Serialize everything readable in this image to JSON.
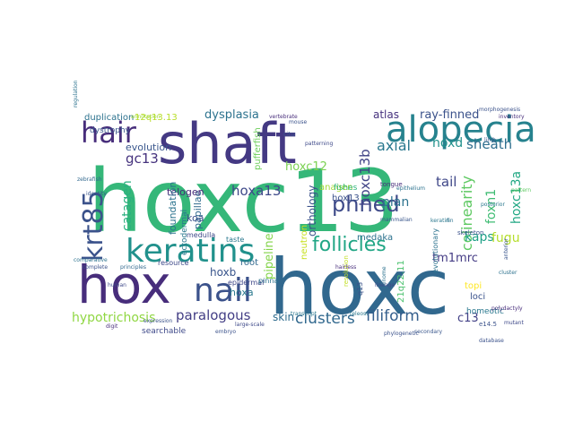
{
  "colors": {
    "background": "#ffffff",
    "palette": [
      "#440154",
      "#472d7b",
      "#3b528b",
      "#2c728e",
      "#21918c",
      "#28ae80",
      "#5ec962",
      "#addc30",
      "#fde725"
    ]
  },
  "words": [
    {
      "text": "hoxc13",
      "color": "#35b779"
    },
    {
      "text": "hoxc",
      "color": "#31688e"
    },
    {
      "text": "shaft",
      "color": "#443983"
    },
    {
      "text": "hox",
      "color": "#472d7b"
    },
    {
      "text": "alopecia",
      "color": "#26828e"
    },
    {
      "text": "keratins",
      "color": "#21918c"
    },
    {
      "text": "nail",
      "color": "#3b528b"
    },
    {
      "text": "krt85",
      "color": "#3b528b"
    },
    {
      "text": "hair",
      "color": "#472d7b"
    },
    {
      "text": "phned",
      "color": "#3e4a89"
    },
    {
      "text": "follicles",
      "color": "#21a685"
    },
    {
      "text": "paralogous",
      "color": "#433e85"
    },
    {
      "text": "clusters",
      "color": "#31688e"
    },
    {
      "text": "filiform",
      "color": "#355f8d"
    },
    {
      "text": "hypotrichosis",
      "color": "#90d743"
    },
    {
      "text": "colinearity",
      "color": "#5ec962"
    },
    {
      "text": "hoxa13",
      "color": "#3e4989"
    },
    {
      "text": "catagen",
      "color": "#2ab07f"
    },
    {
      "text": "gc13",
      "color": "#46337e"
    },
    {
      "text": "dysplasia",
      "color": "#2c728e"
    },
    {
      "text": "atlas",
      "color": "#46327e"
    },
    {
      "text": "ray-finned",
      "color": "#3b528b"
    },
    {
      "text": "sheath",
      "color": "#2e6e8e"
    },
    {
      "text": "hoxd",
      "color": "#21918c"
    },
    {
      "text": "axial",
      "color": "#2a788e"
    },
    {
      "text": "hoxc12",
      "color": "#7ad151"
    },
    {
      "text": "hoxc13b",
      "color": "#414487"
    },
    {
      "text": "hoxc13a",
      "color": "#22a884"
    },
    {
      "text": "tail",
      "color": "#3f4788"
    },
    {
      "text": "plan",
      "color": "#2c728e"
    },
    {
      "text": "kaps",
      "color": "#1fa187"
    },
    {
      "text": "foxn1",
      "color": "#3fbc73"
    },
    {
      "text": "fugu",
      "color": "#b5de2b"
    },
    {
      "text": "tm1mrc",
      "color": "#443b84"
    },
    {
      "text": "c13",
      "color": "#424086"
    },
    {
      "text": "skin",
      "color": "#2f6c8e"
    },
    {
      "text": "hoxb",
      "color": "#39558c"
    },
    {
      "text": "hoxa",
      "color": "#2a788e"
    },
    {
      "text": "root",
      "color": "#31688e"
    },
    {
      "text": "pipeline",
      "color": "#84d44b"
    },
    {
      "text": "orthology",
      "color": "#3b528b"
    },
    {
      "text": "papillae",
      "color": "#306a8e"
    },
    {
      "text": "telogen",
      "color": "#472c7a"
    },
    {
      "text": "evolution",
      "color": "#39568c"
    },
    {
      "text": "foundation",
      "color": "#2c738e"
    },
    {
      "text": "koa",
      "color": "#3c508b"
    },
    {
      "text": "pufferfish",
      "color": "#6ccd5a"
    },
    {
      "text": "anagen",
      "color": "#a5db36"
    },
    {
      "text": "hox13",
      "color": "#3b528b"
    },
    {
      "text": "12q13.13",
      "color": "#b8de29"
    },
    {
      "text": "duplication",
      "color": "#2c728e"
    },
    {
      "text": "dystrophy",
      "color": "#39568c"
    },
    {
      "text": "ectodermal",
      "color": "#2a788e"
    },
    {
      "text": "medulla",
      "color": "#3e4989"
    },
    {
      "text": "neutron",
      "color": "#c8e020"
    },
    {
      "text": "medaka",
      "color": "#2c728e"
    },
    {
      "text": "fishes",
      "color": "#2fb47c"
    },
    {
      "text": "resource",
      "color": "#3e4989"
    },
    {
      "text": "epidermal",
      "color": "#3f4788"
    },
    {
      "text": "taste",
      "color": "#2a788e"
    },
    {
      "text": "pinna",
      "color": "#2c738e"
    },
    {
      "text": "21q22.11",
      "color": "#4ac16d"
    },
    {
      "text": "topi",
      "color": "#fde725"
    },
    {
      "text": "loci",
      "color": "#3b528b"
    },
    {
      "text": "homeotic",
      "color": "#2a788e"
    },
    {
      "text": "e14.5",
      "color": "#3b528b"
    },
    {
      "text": "evolutionary",
      "color": "#2c728e"
    },
    {
      "text": "skeleton",
      "color": "#3b528b"
    },
    {
      "text": "tongue",
      "color": "#472d7b"
    },
    {
      "text": "q13",
      "color": "#3b528b"
    },
    {
      "text": "searchable",
      "color": "#3e4989"
    },
    {
      "text": "citu",
      "color": "#39568c"
    },
    {
      "text": "resolution",
      "color": "#c2df23"
    },
    {
      "text": "database",
      "color": "#3b528b"
    },
    {
      "text": "genome",
      "color": "#2c728e"
    },
    {
      "text": "mammalian",
      "color": "#39568c"
    },
    {
      "text": "inventory",
      "color": "#472d7b"
    },
    {
      "text": "morphogenesis",
      "color": "#3b528b"
    },
    {
      "text": "keratin",
      "color": "#2a788e"
    },
    {
      "text": "patterning",
      "color": "#3e4989"
    },
    {
      "text": "posterior",
      "color": "#2a788e"
    },
    {
      "text": "anterior",
      "color": "#39568c"
    },
    {
      "text": "vertebrate",
      "color": "#472d7b"
    },
    {
      "text": "epithelium",
      "color": "#2c728e"
    },
    {
      "text": "phylogenetic",
      "color": "#3b528b"
    },
    {
      "text": "secondary",
      "color": "#39568c"
    },
    {
      "text": "large-scale",
      "color": "#3e4989"
    },
    {
      "text": "principles",
      "color": "#31688e"
    },
    {
      "text": "comparative",
      "color": "#2c728e"
    },
    {
      "text": "annotation",
      "color": "#a0da39"
    },
    {
      "text": "polydactyly",
      "color": "#472d7b"
    },
    {
      "text": "complete",
      "color": "#3b528b"
    },
    {
      "text": "regulation",
      "color": "#2c728e"
    },
    {
      "text": "identity",
      "color": "#39568c"
    },
    {
      "text": "mutant",
      "color": "#3e4989"
    },
    {
      "text": "hairless",
      "color": "#472d7b"
    },
    {
      "text": "transcript",
      "color": "#2a788e"
    },
    {
      "text": "expression",
      "color": "#3b528b"
    },
    {
      "text": "zebrafish",
      "color": "#31688e"
    },
    {
      "text": "lineage",
      "color": "#3e4989"
    },
    {
      "text": "cluster",
      "color": "#2c728e"
    },
    {
      "text": "pattern",
      "color": "#5ec962"
    },
    {
      "text": "mouse",
      "color": "#3b528b"
    },
    {
      "text": "human",
      "color": "#3e4989"
    },
    {
      "text": "teleost",
      "color": "#2a788e"
    },
    {
      "text": "limb",
      "color": "#39568c"
    },
    {
      "text": "digit",
      "color": "#472d7b"
    },
    {
      "text": "fin",
      "color": "#2c728e"
    },
    {
      "text": "embryo",
      "color": "#3b528b"
    }
  ]
}
